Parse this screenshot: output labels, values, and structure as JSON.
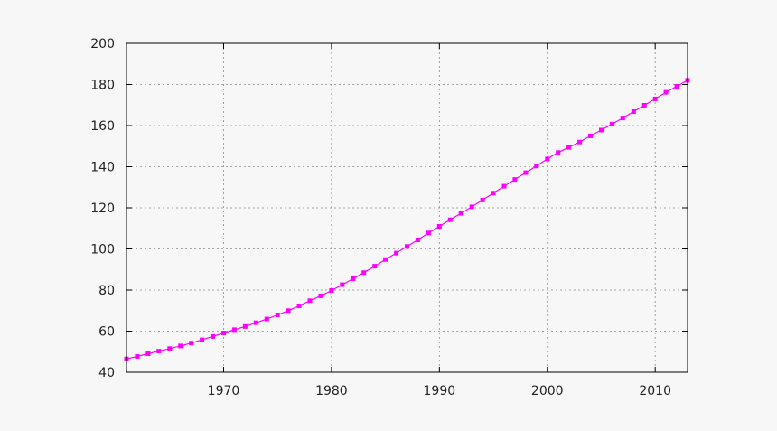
{
  "chart_data": {
    "type": "line",
    "title": "",
    "xlabel": "",
    "ylabel": "",
    "xlim": [
      1961,
      2013
    ],
    "ylim": [
      40,
      200
    ],
    "xticks": [
      1970,
      1980,
      1990,
      2000,
      2010
    ],
    "yticks": [
      40,
      60,
      80,
      100,
      120,
      140,
      160,
      180,
      200
    ],
    "grid": true,
    "series_color": "#ff00ff",
    "series": [
      {
        "x": [
          1961,
          1962,
          1963,
          1964,
          1965,
          1966,
          1967,
          1968,
          1969,
          1970,
          1971,
          1972,
          1973,
          1974,
          1975,
          1976,
          1977,
          1978,
          1979,
          1980,
          1981,
          1982,
          1983,
          1984,
          1985,
          1986,
          1987,
          1988,
          1989,
          1990,
          1991,
          1992,
          1993,
          1994,
          1995,
          1996,
          1997,
          1998,
          1999,
          2000,
          2001,
          2002,
          2003,
          2004,
          2005,
          2006,
          2007,
          2008,
          2009,
          2010,
          2011,
          2012,
          2013
        ],
        "values": [
          46.5,
          47.7,
          49.0,
          50.3,
          51.5,
          52.8,
          54.2,
          55.8,
          57.4,
          59.1,
          60.7,
          62.3,
          64.1,
          65.9,
          67.9,
          70.0,
          72.3,
          74.8,
          77.2,
          79.8,
          82.6,
          85.5,
          88.5,
          91.6,
          94.8,
          98.0,
          101.2,
          104.4,
          107.8,
          111.0,
          114.2,
          117.3,
          120.5,
          123.8,
          127.1,
          130.5,
          133.8,
          137.1,
          140.3,
          143.8,
          146.9,
          149.4,
          152.0,
          155.0,
          157.8,
          160.7,
          163.7,
          166.8,
          169.9,
          173.0,
          176.2,
          179.1,
          182.0
        ]
      }
    ]
  }
}
